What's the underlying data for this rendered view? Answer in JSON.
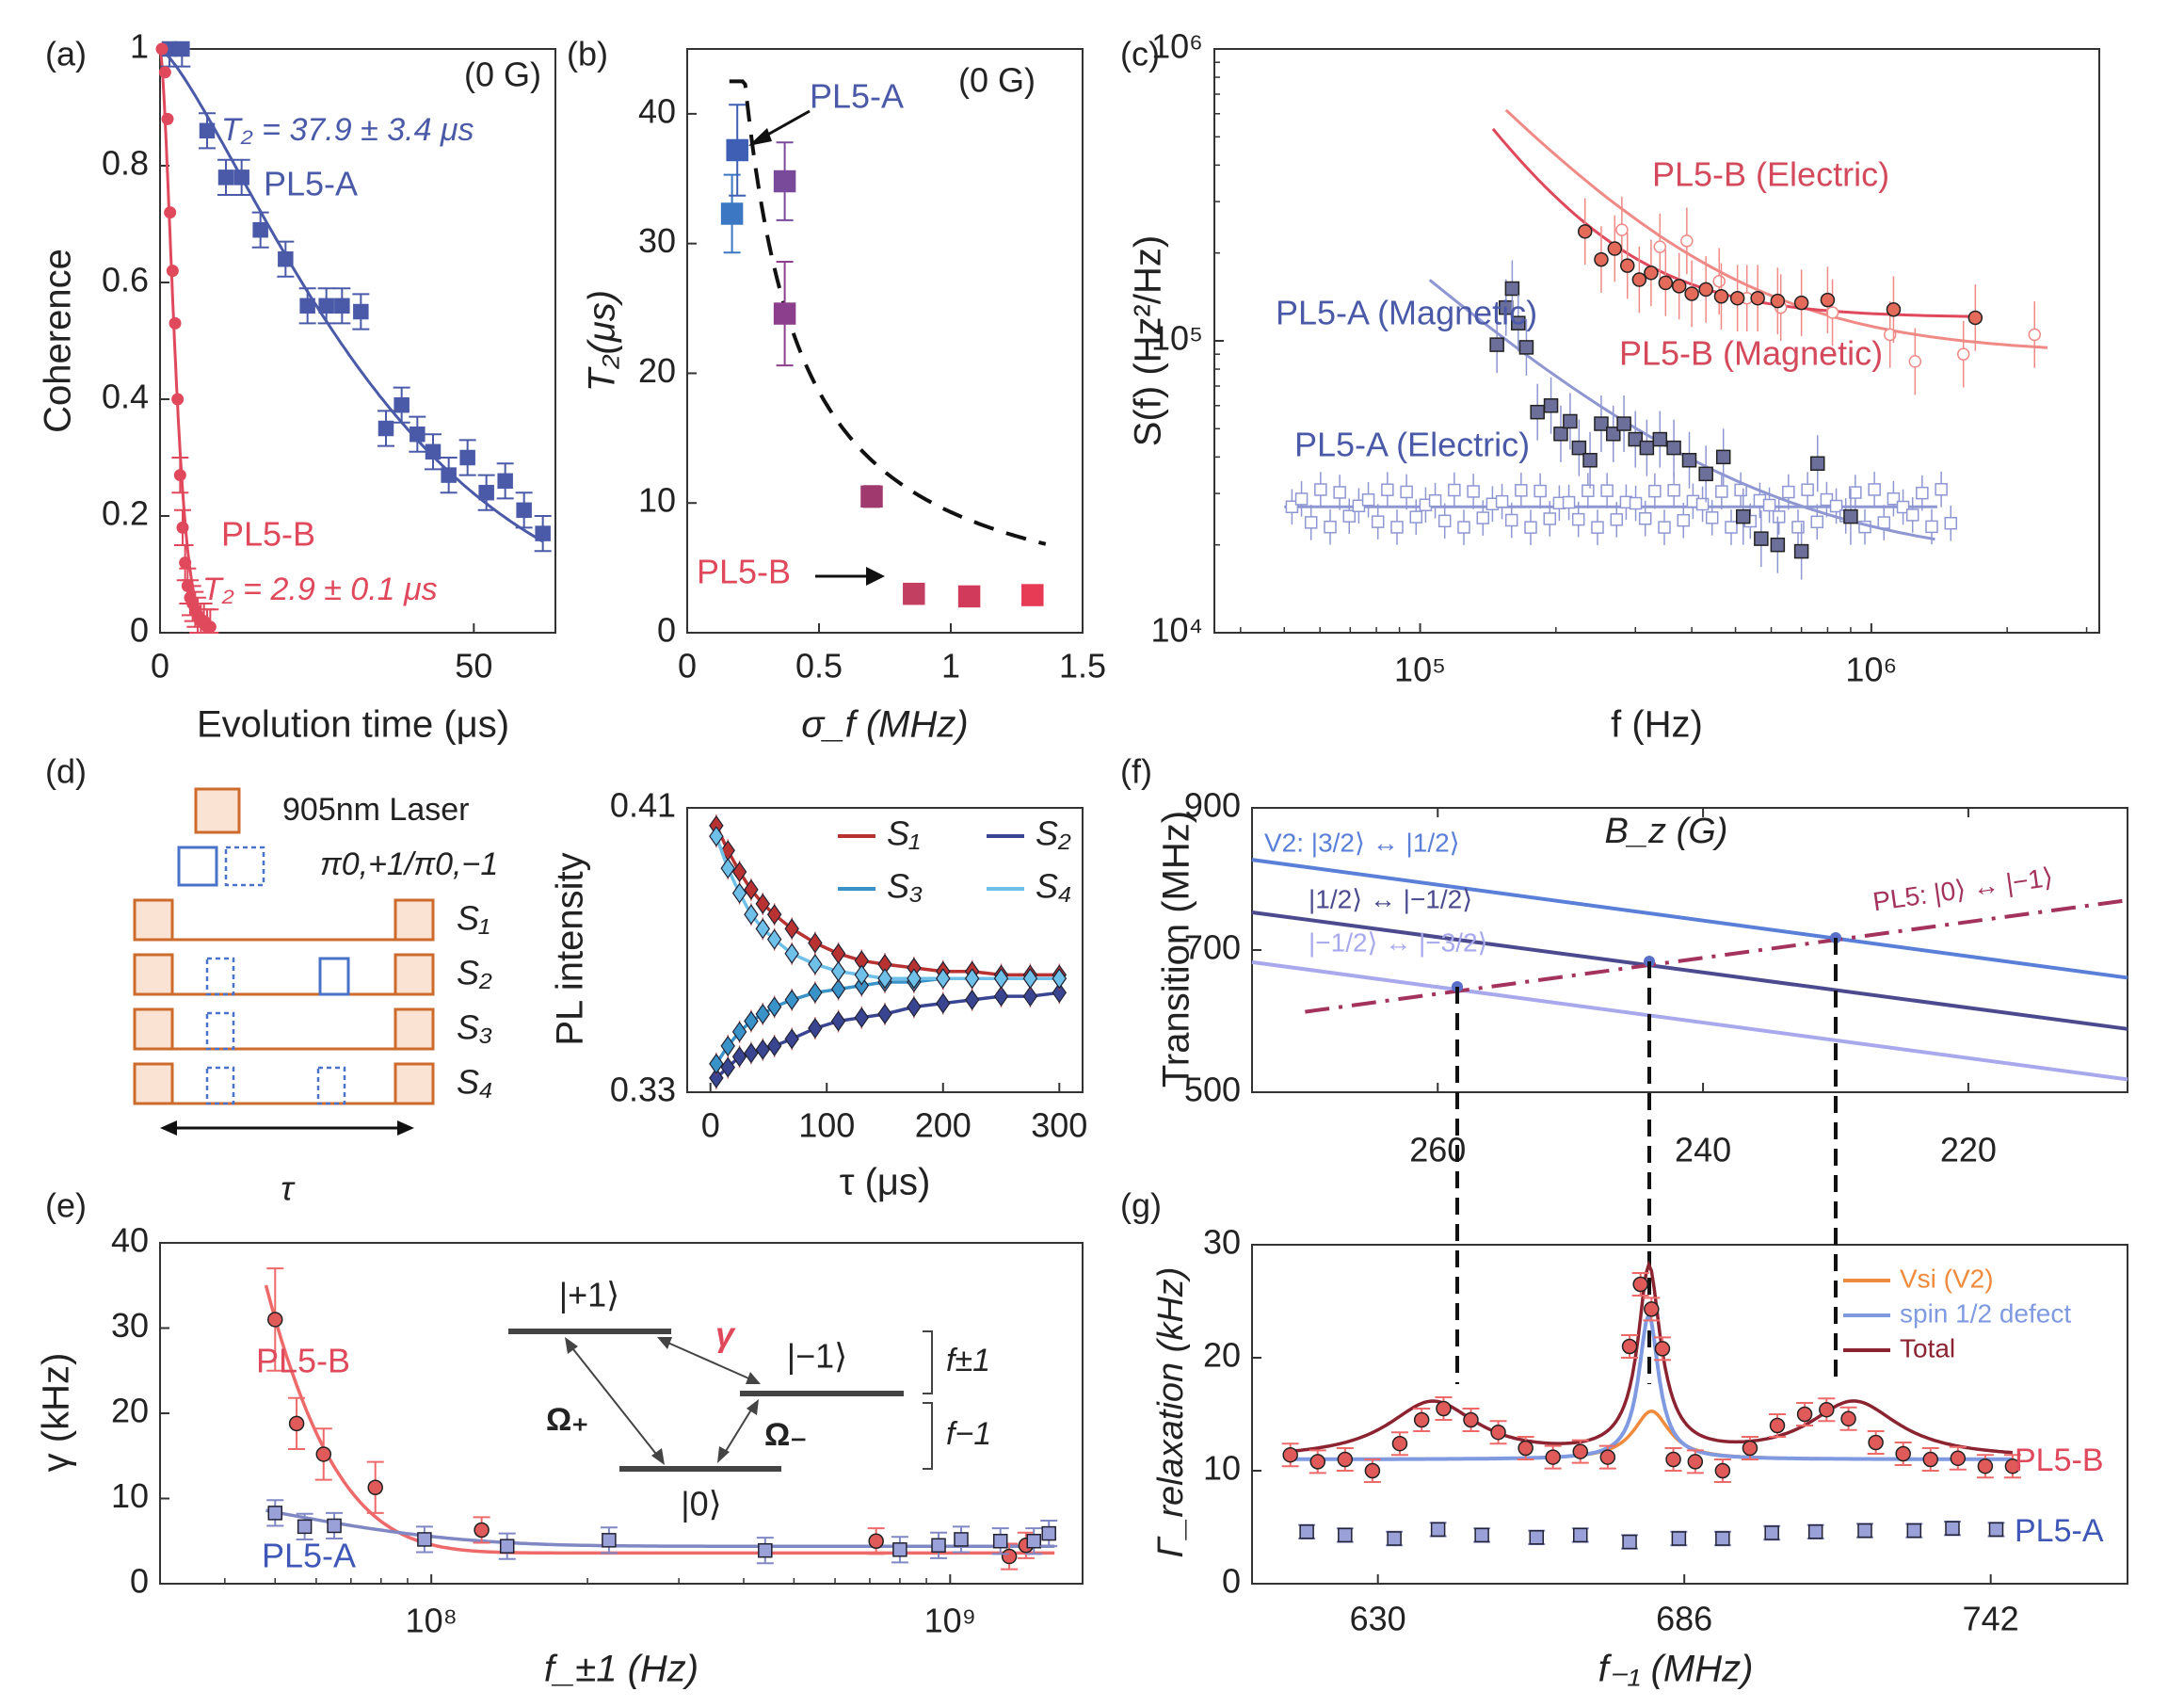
{
  "colors": {
    "pl5a": "#4a5aa8",
    "pl5a_light": "#8e97d2",
    "pl5b": "#e0485c",
    "pl5b_light": "#ef8a86",
    "purple": "#8a3f86",
    "orange_seq": "#cc6b2c",
    "blue_seq": "#4a72c9",
    "trans_v2": "#5a7fd8",
    "trans_mid": "#4c4a8e",
    "trans_low": "#a7a9ec",
    "trans_pl5": "#a3335d",
    "total": "#8b2330",
    "vsi": "#f08a3c",
    "defect": "#7f9ae0",
    "s1": "#b83232",
    "s2": "#3a4592",
    "s3": "#3a93c8",
    "s4": "#6ec0e8"
  },
  "chart_data": [
    {
      "id": "a",
      "panel_label": "(a)",
      "type": "scatter",
      "xlabel": "Evolution time (μs)",
      "ylabel": "Coherence",
      "xlim": [
        0,
        63
      ],
      "ylim": [
        0,
        1
      ],
      "xticks": [
        "0",
        "50"
      ],
      "yticks": [
        "0",
        "0.2",
        "0.4",
        "0.6",
        "0.8",
        "1"
      ],
      "annotation": "(0 G)",
      "series": [
        {
          "name": "PL5-A",
          "fit_label": "T₂ = 37.9 ± 3.4 μs",
          "x": [
            1.5,
            3.5,
            7.5,
            10.5,
            13,
            16,
            20,
            23.5,
            26.5,
            29,
            32,
            36,
            38.5,
            41,
            43.5,
            46,
            49,
            52,
            55,
            58,
            61
          ],
          "y": [
            1.0,
            1.0,
            0.86,
            0.78,
            0.78,
            0.69,
            0.64,
            0.56,
            0.56,
            0.56,
            0.55,
            0.35,
            0.39,
            0.34,
            0.31,
            0.27,
            0.3,
            0.24,
            0.26,
            0.21,
            0.17
          ]
        },
        {
          "name": "PL5-B",
          "fit_label": "T₂ = 2.9 ± 0.1 μs",
          "x": [
            0.3,
            0.8,
            1.2,
            1.6,
            2.0,
            2.4,
            2.8,
            3.2,
            3.6,
            4.0,
            4.4,
            4.8,
            5.2,
            5.6,
            6.0,
            6.5,
            7.0,
            7.5,
            8.0
          ],
          "y": [
            1.0,
            0.96,
            0.88,
            0.72,
            0.62,
            0.53,
            0.4,
            0.27,
            0.18,
            0.12,
            0.08,
            0.06,
            0.05,
            0.04,
            0.03,
            0.02,
            0.02,
            0.01,
            0.01
          ]
        }
      ]
    },
    {
      "id": "b",
      "panel_label": "(b)",
      "type": "scatter",
      "xlabel": "σ_f (MHz)",
      "ylabel": "T₂(μs)",
      "xlim": [
        0,
        1.5
      ],
      "ylim": [
        0,
        45
      ],
      "xticks": [
        "0",
        "0.5",
        "1",
        "1.5"
      ],
      "yticks": [
        "0",
        "10",
        "20",
        "30",
        "40"
      ],
      "annotation": "(0 G)",
      "labels": [
        "PL5-A",
        "PL5-B"
      ],
      "points": [
        {
          "x": 0.17,
          "y": 32.3,
          "err": 3.0
        },
        {
          "x": 0.19,
          "y": 37.2,
          "err": 3.5
        },
        {
          "x": 0.37,
          "y": 34.8,
          "err": 3.0
        },
        {
          "x": 0.37,
          "y": 24.6,
          "err": 4.0
        },
        {
          "x": 0.7,
          "y": 10.5,
          "err": 0.8
        },
        {
          "x": 0.86,
          "y": 3.0,
          "err": 0.4
        },
        {
          "x": 1.07,
          "y": 2.8,
          "err": 0.4
        },
        {
          "x": 1.31,
          "y": 2.9,
          "err": 0.4
        }
      ]
    },
    {
      "id": "c",
      "panel_label": "(c)",
      "type": "scatter",
      "xlabel": "f (Hz)",
      "ylabel": "S(f) (Hz²/Hz)",
      "xscale": "log",
      "yscale": "log",
      "xlim": [
        35000,
        3200000
      ],
      "ylim": [
        10000,
        1000000
      ],
      "xtick_labels": [
        "10⁵",
        "10⁶"
      ],
      "ytick_labels": [
        "10⁴",
        "10⁵",
        "10⁶"
      ],
      "series": [
        {
          "name": "PL5-A (Magnetic)",
          "x": [
            148000,
            155000,
            160000,
            165000,
            172000,
            182000,
            195000,
            205000,
            215000,
            225000,
            238000,
            252000,
            268000,
            283000,
            300000,
            318000,
            340000,
            365000,
            395000,
            430000,
            470000,
            520000,
            570000,
            620000,
            700000,
            760000,
            900000
          ],
          "y": [
            97000,
            130000,
            151000,
            115000,
            95000,
            57000,
            60000,
            48000,
            53000,
            43000,
            39000,
            52000,
            48000,
            52000,
            46000,
            43000,
            46000,
            43000,
            39000,
            35000,
            40000,
            25000,
            21000,
            20000,
            19000,
            38000,
            25000
          ]
        },
        {
          "name": "PL5-B (Magnetic)",
          "x": [
            232000,
            252000,
            270000,
            288000,
            306000,
            325000,
            350000,
            375000,
            400000,
            430000,
            465000,
            505000,
            560000,
            620000,
            700000,
            800000,
            1120000,
            1700000
          ],
          "y": [
            237000,
            190000,
            207000,
            181000,
            162000,
            171000,
            158000,
            154000,
            145000,
            150000,
            142000,
            140000,
            140000,
            137000,
            135000,
            138000,
            128000,
            120000
          ]
        },
        {
          "name": "PL5-A (Electric)",
          "baseline": 27000
        },
        {
          "name": "PL5-B (Electric)"
        }
      ]
    },
    {
      "id": "d",
      "panel_label": "(d)",
      "type": "line",
      "xlabel": "τ (μs)",
      "ylabel": "PL intensity",
      "xlim": [
        -20,
        320
      ],
      "ylim": [
        0.33,
        0.41
      ],
      "xticks": [
        "0",
        "100",
        "200",
        "300"
      ],
      "yticks": [
        "0.33",
        "0.41"
      ],
      "series": [
        {
          "name": "S₁",
          "x": [
            5,
            15,
            25,
            35,
            45,
            55,
            70,
            90,
            110,
            130,
            150,
            175,
            200,
            225,
            250,
            275,
            300
          ],
          "y": [
            0.405,
            0.398,
            0.392,
            0.387,
            0.383,
            0.38,
            0.376,
            0.372,
            0.369,
            0.367,
            0.366,
            0.365,
            0.364,
            0.364,
            0.363,
            0.363,
            0.363
          ]
        },
        {
          "name": "S₂",
          "x": [
            5,
            15,
            25,
            35,
            45,
            55,
            70,
            90,
            110,
            130,
            150,
            175,
            200,
            225,
            250,
            275,
            300
          ],
          "y": [
            0.334,
            0.337,
            0.34,
            0.341,
            0.342,
            0.343,
            0.345,
            0.348,
            0.35,
            0.351,
            0.352,
            0.354,
            0.355,
            0.356,
            0.357,
            0.357,
            0.358
          ]
        },
        {
          "name": "S₃",
          "x": [
            5,
            15,
            25,
            35,
            45,
            55,
            70,
            90,
            110,
            130,
            150,
            175,
            200,
            225,
            250,
            275,
            300
          ],
          "y": [
            0.338,
            0.343,
            0.347,
            0.35,
            0.352,
            0.354,
            0.356,
            0.358,
            0.359,
            0.36,
            0.361,
            0.361,
            0.362,
            0.362,
            0.362,
            0.362,
            0.362
          ]
        },
        {
          "name": "S₄",
          "x": [
            5,
            15,
            25,
            35,
            45,
            55,
            70,
            90,
            110,
            130,
            150,
            175,
            200,
            225,
            250,
            275,
            300
          ],
          "y": [
            0.402,
            0.393,
            0.386,
            0.38,
            0.376,
            0.373,
            0.369,
            0.366,
            0.364,
            0.363,
            0.362,
            0.362,
            0.362,
            0.362,
            0.362,
            0.362,
            0.362
          ]
        }
      ]
    },
    {
      "id": "e",
      "panel_label": "(e)",
      "type": "scatter",
      "xlabel": "f_±1 (Hz)",
      "ylabel": "γ (kHz)",
      "xscale": "log",
      "xlim": [
        30000000,
        1800000000
      ],
      "ylim": [
        0,
        40
      ],
      "xtick_labels": [
        "10⁸",
        "10⁹"
      ],
      "yticks": [
        "0",
        "10",
        "20",
        "30",
        "40"
      ],
      "series": [
        {
          "name": "PL5-B",
          "x": [
            50000000,
            55000000,
            62000000,
            78000000,
            125000000,
            720000000,
            1300000000,
            1400000000
          ],
          "y": [
            31.0,
            18.8,
            15.2,
            11.3,
            6.3,
            5.0,
            3.2,
            4.5
          ]
        },
        {
          "name": "PL5-A",
          "x": [
            50000000,
            57000000,
            65000000,
            97000000,
            140000000,
            220000000,
            440000000,
            800000000,
            950000000,
            1050000000,
            1250000000,
            1450000000,
            1550000000
          ],
          "y": [
            8.3,
            6.7,
            6.8,
            5.2,
            4.4,
            5.1,
            3.9,
            4.0,
            4.5,
            5.2,
            5.0,
            5.0,
            5.9
          ]
        }
      ],
      "inset": {
        "levels": [
          "|+1⟩",
          "|−1⟩",
          "|0⟩"
        ],
        "rates": [
          "Ω₊",
          "Ω₋",
          "γ"
        ],
        "spacings": [
          "f±1",
          "f−1"
        ]
      }
    },
    {
      "id": "f",
      "panel_label": "(f)",
      "type": "line",
      "xlabel": "B_z (G)",
      "ylabel": "Transition (MHz)",
      "xlim": [
        274,
        208
      ],
      "ylim": [
        500,
        900
      ],
      "xticks": [
        "260",
        "240",
        "220"
      ],
      "yticks": [
        "500",
        "700",
        "900"
      ],
      "series": [
        {
          "name": "V2: |3/2⟩ ↔ |1/2⟩",
          "x": [
            274,
            208
          ],
          "y": [
            827,
            661
          ]
        },
        {
          "name": "|1/2⟩ ↔ |−1/2⟩",
          "x": [
            274,
            208
          ],
          "y": [
            753,
            589
          ]
        },
        {
          "name": "|−1/2⟩ ↔ |−3/2⟩",
          "x": [
            274,
            208
          ],
          "y": [
            683,
            518
          ]
        },
        {
          "name": "PL5: |0⟩ ↔ |−1⟩",
          "x": [
            274,
            208
          ],
          "y": [
            603,
            770
          ]
        }
      ]
    },
    {
      "id": "g",
      "panel_label": "(g)",
      "type": "scatter",
      "xlabel": "f₋₁ (MHz)",
      "ylabel": "Γ_relaxation (kHz)",
      "xlim": [
        607,
        767
      ],
      "ylim": [
        0,
        30
      ],
      "xticks": [
        "630",
        "686",
        "742"
      ],
      "yticks": [
        "0",
        "10",
        "20",
        "30"
      ],
      "legend": [
        "Vsi (V2)",
        "spin 1/2 defect",
        "Total"
      ],
      "series": [
        {
          "name": "PL5-B",
          "x": [
            614,
            619,
            624,
            629,
            634,
            638,
            642,
            647,
            652,
            657,
            662,
            667,
            672,
            676,
            678,
            680,
            682,
            684,
            688,
            693,
            698,
            703,
            708,
            712,
            716,
            721,
            726,
            731,
            736,
            741,
            746
          ],
          "y": [
            11.4,
            10.8,
            11.0,
            10.0,
            12.4,
            14.5,
            15.5,
            14.5,
            13.4,
            12.0,
            11.2,
            11.7,
            11.2,
            21.0,
            26.5,
            24.3,
            20.8,
            11.0,
            10.8,
            10.0,
            12.0,
            14.0,
            15.0,
            15.4,
            14.6,
            12.5,
            11.5,
            11.0,
            11.1,
            10.4,
            10.4
          ]
        },
        {
          "name": "PL5-A",
          "x": [
            617,
            624,
            633,
            641,
            649,
            659,
            667,
            676,
            685,
            693,
            702,
            710,
            719,
            728,
            735,
            743
          ],
          "y": [
            4.6,
            4.3,
            4.0,
            4.8,
            4.3,
            4.1,
            4.3,
            3.7,
            4.0,
            4.0,
            4.5,
            4.6,
            4.7,
            4.7,
            4.9,
            4.8
          ]
        }
      ]
    }
  ],
  "diagram_d": {
    "legend_laser": "905nm Laser",
    "legend_pi": "π0,+1/π0,−1",
    "rows": [
      "S₁",
      "S₂",
      "S₃",
      "S₄"
    ],
    "tau_label": "τ"
  }
}
